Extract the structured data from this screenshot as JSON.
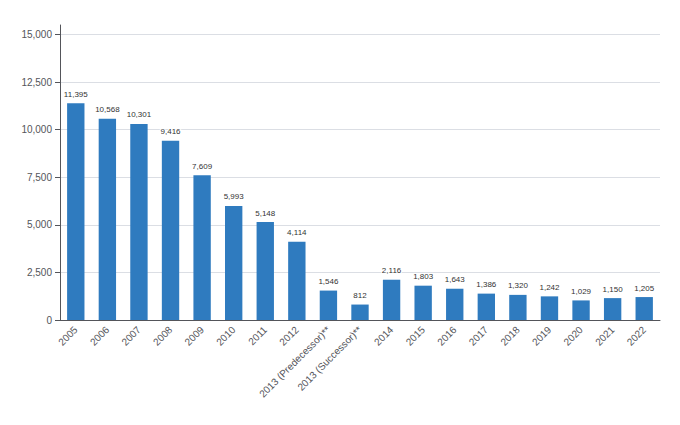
{
  "chart_data": {
    "type": "bar",
    "categories": [
      "2005",
      "2006",
      "2007",
      "2008",
      "2009",
      "2010",
      "2011",
      "2012",
      "2013 (Predecessor)**",
      "2013 (Successor)**",
      "2014",
      "2015",
      "2016",
      "2017",
      "2018",
      "2019",
      "2020",
      "2021",
      "2022"
    ],
    "values": [
      11395,
      10568,
      10301,
      9416,
      7609,
      5993,
      5148,
      4114,
      1546,
      812,
      2116,
      1803,
      1643,
      1386,
      1320,
      1242,
      1029,
      1150,
      1205
    ],
    "value_labels": [
      "11,395",
      "10,568",
      "10,301",
      "9,416",
      "7,609",
      "5,993",
      "5,148",
      "4,114",
      "1,546",
      "812",
      "2,116",
      "1,803",
      "1,643",
      "1,386",
      "1,320",
      "1,242",
      "1,029",
      "1,150",
      "1,205"
    ],
    "data_labels": true,
    "color": "#2f7bbf",
    "ylim": [
      0,
      15500
    ],
    "yticks": [
      0,
      {
        "value": 2500,
        "label": "2,500"
      },
      {
        "value": 5000,
        "label": "5,000"
      },
      {
        "value": 7500,
        "label": "7,500"
      },
      {
        "value": 10000,
        "label": "10,000"
      },
      {
        "value": 12500,
        "label": "12,500"
      },
      {
        "value": 15000,
        "label": "15,000"
      }
    ],
    "grid": true
  }
}
